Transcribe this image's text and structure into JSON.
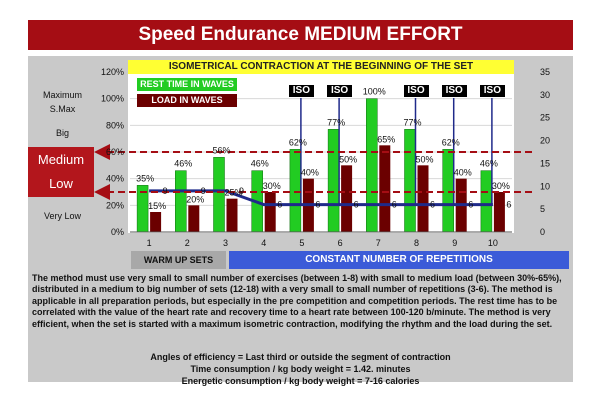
{
  "header": {
    "title": "Speed Endurance MEDIUM EFFORT",
    "isometric_banner": "ISOMETRICAL CONTRACTION AT THE BEGINNING OF THE SET",
    "iso_label": "ISO"
  },
  "levels": {
    "maximum": "Maximum",
    "smax": "S.Max",
    "big": "Big",
    "medium": "Medium",
    "low": "Low",
    "very_low": "Very Low"
  },
  "legend": {
    "rest": "REST TIME IN WAVES",
    "load": "LOAD IN WAVES"
  },
  "phases": {
    "warm_up": "WARM UP SETS",
    "constant": "CONSTANT NUMBER OF REPETITIONS"
  },
  "description": "The method must use very small to small number of exercises (between 1-8) with small to medium load (between 30%-65%), distributed in a medium to big number of sets (12-18) with a very small to small number of repetitions (3-6). The method is applicable in all preparation periods, but especially in the pre competition and competition periods. The rest time has to be correlated with the value of the heart rate and recovery time to a heart rate between 100-120 b/minute. The method is very efficient, when the set is started with a maximum isometric contraction, modifying the rhythm and the load  during the set.",
  "center_lines": {
    "angles": "Angles of efficiency =  Last third or outside the segment of contraction",
    "time": "Time consumption /  kg body weight =  1.42. minutes",
    "energy": "Energetic consumption /  kg body weight =  7-16 calories"
  },
  "colors": {
    "title_bg": "#a50d14",
    "rest_bar": "#22cc22",
    "load_bar": "#6b0000",
    "line": "#1f2a8a",
    "dash": "#a50d14",
    "banner": "#ffff33",
    "constant_bg": "#3b5bd8"
  },
  "chart_data": {
    "type": "bar",
    "categories": [
      "1",
      "2",
      "3",
      "4",
      "5",
      "6",
      "7",
      "8",
      "9",
      "10"
    ],
    "left_axis": {
      "ticks": [
        "0%",
        "20%",
        "40%",
        "60%",
        "80%",
        "100%",
        "120%"
      ],
      "range": [
        0,
        120
      ]
    },
    "right_axis": {
      "ticks": [
        "0",
        "5",
        "10",
        "15",
        "20",
        "25",
        "30",
        "35"
      ],
      "range": [
        0,
        35
      ]
    },
    "series": [
      {
        "name": "REST TIME IN WAVES",
        "axis": "left",
        "values": [
          35,
          46,
          56,
          46,
          62,
          77,
          100,
          77,
          62,
          46
        ],
        "labels": [
          "35%",
          "46%",
          "56%",
          "46%",
          "62%",
          "77%",
          "100%",
          "77%",
          "62%",
          "46%"
        ]
      },
      {
        "name": "LOAD IN WAVES",
        "axis": "left",
        "values": [
          15,
          20,
          25,
          30,
          40,
          50,
          65,
          50,
          40,
          30
        ],
        "labels": [
          "15%",
          "20%",
          "25%",
          "30%",
          "40%",
          "50%",
          "65%",
          "50%",
          "40%",
          "30%"
        ]
      },
      {
        "axis": "right",
        "values": [
          9,
          9,
          9,
          6,
          6,
          6,
          6,
          6,
          6,
          6
        ],
        "labels": [
          "9",
          "9",
          "9",
          "6",
          "6",
          "6",
          "6",
          "6",
          "6",
          "6"
        ]
      }
    ],
    "iso_sets": [
      5,
      6,
      8,
      9,
      10
    ],
    "dashed_levels": [
      60,
      30
    ]
  }
}
